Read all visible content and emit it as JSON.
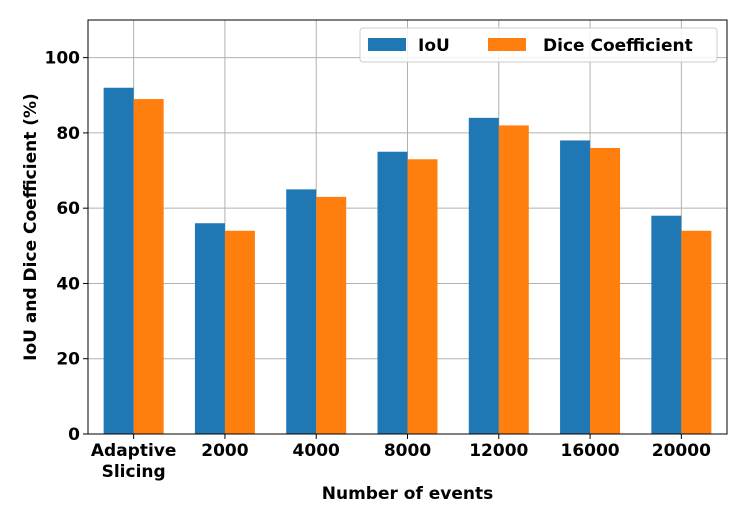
{
  "chart_data": {
    "type": "bar",
    "title": "",
    "xlabel": "Number of events",
    "ylabel": "IoU and Dice Coefficient (%)",
    "categories": [
      [
        "Adaptive",
        "Slicing"
      ],
      [
        "2000"
      ],
      [
        "4000"
      ],
      [
        "8000"
      ],
      [
        "12000"
      ],
      [
        "16000"
      ],
      [
        "20000"
      ]
    ],
    "series": [
      {
        "name": "IoU",
        "color": "#1f77b4",
        "values": [
          92,
          56,
          65,
          75,
          84,
          78,
          58
        ]
      },
      {
        "name": "Dice Coefficient",
        "color": "#ff7f0e",
        "values": [
          89,
          54,
          63,
          73,
          82,
          76,
          54
        ]
      }
    ],
    "ylim": [
      0,
      110
    ],
    "yticks": [
      0,
      20,
      40,
      60,
      80,
      100
    ],
    "grid": true,
    "legend_position": "top-right"
  }
}
